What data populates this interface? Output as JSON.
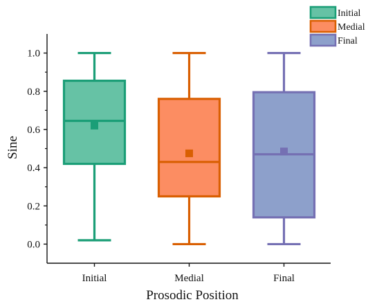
{
  "chart_data": {
    "type": "box",
    "title": "",
    "xlabel": "Prosodic Position",
    "ylabel": "Sine",
    "ylim": [
      -0.1,
      1.1
    ],
    "yticks": [
      "0.0",
      "0.2",
      "0.4",
      "0.6",
      "0.8",
      "1.0"
    ],
    "ytick_values": [
      0.0,
      0.2,
      0.4,
      0.6,
      0.8,
      1.0
    ],
    "categories": [
      "Initial",
      "Medial",
      "Final"
    ],
    "series": [
      {
        "name": "Initial",
        "whisker_low": 0.02,
        "q1": 0.42,
        "median": 0.645,
        "q3": 0.855,
        "whisker_high": 1.0,
        "mean": 0.62,
        "fill": "#66c2a5",
        "stroke": "#1b9e77"
      },
      {
        "name": "Medial",
        "whisker_low": 0.0,
        "q1": 0.25,
        "median": 0.43,
        "q3": 0.76,
        "whisker_high": 1.0,
        "mean": 0.475,
        "fill": "#fc8d62",
        "stroke": "#d95f02"
      },
      {
        "name": "Final",
        "whisker_low": 0.0,
        "q1": 0.14,
        "median": 0.47,
        "q3": 0.795,
        "whisker_high": 1.0,
        "mean": 0.485,
        "fill": "#8da0cb",
        "stroke": "#7570b3"
      }
    ],
    "legend": {
      "placement": "top-right",
      "entries": [
        "Initial",
        "Medial",
        "Final"
      ]
    },
    "grid": false
  }
}
